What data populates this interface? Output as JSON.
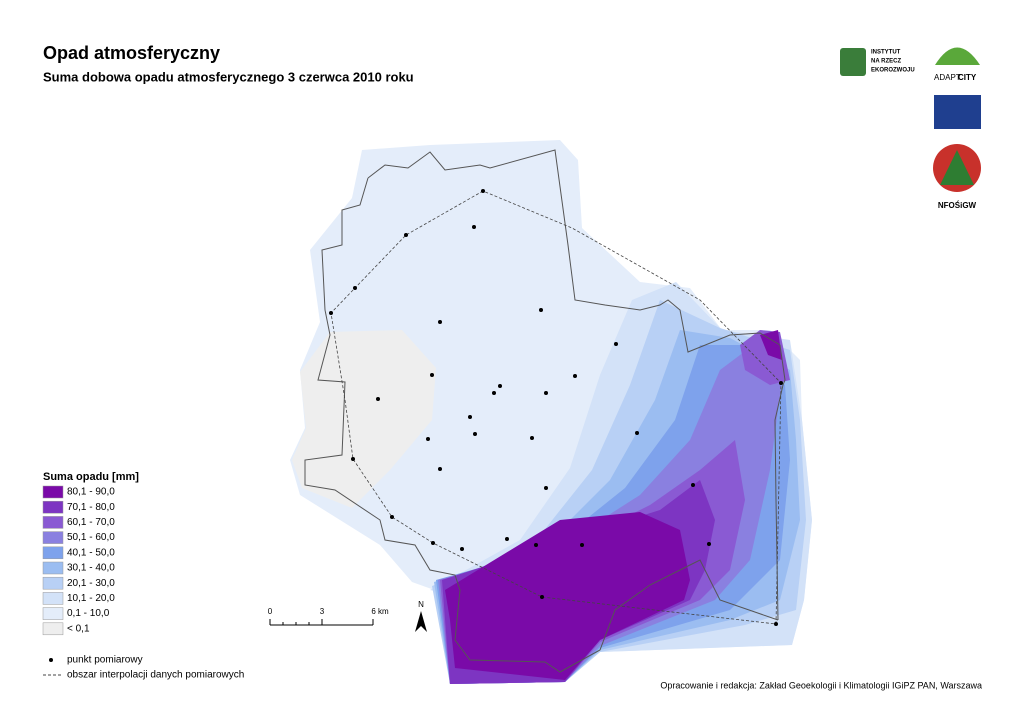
{
  "header": {
    "title": "Opad atmosferyczny",
    "subtitle": "Suma dobowa opadu atmosferycznego 3 czerwca 2010 roku"
  },
  "legend": {
    "title": "Suma opadu [mm]",
    "items": [
      {
        "label": "80,1 - 90,0",
        "color": "#7a0aa8"
      },
      {
        "label": "70,1 - 80,0",
        "color": "#7d35c2"
      },
      {
        "label": "60,1 - 70,0",
        "color": "#8a5ad3"
      },
      {
        "label": "50,1 - 60,0",
        "color": "#8a80e0"
      },
      {
        "label": "40,1 - 50,0",
        "color": "#7ea2ec"
      },
      {
        "label": "30,1 - 40,0",
        "color": "#9bbdf1"
      },
      {
        "label": "20,1 - 30,0",
        "color": "#b8d0f5"
      },
      {
        "label": "10,1 - 20,0",
        "color": "#d3e2f8"
      },
      {
        "label": "0,1 - 10,0",
        "color": "#e4edfa"
      },
      {
        "label": "< 0,1",
        "color": "#eeeeee"
      }
    ],
    "point": "punkt pomiarowy",
    "area": "obszar interpolacji danych pomiarowych"
  },
  "scale": {
    "labels": [
      "0",
      "3",
      "6 km"
    ]
  },
  "north": "N",
  "logos": {
    "ire": [
      "INSTYTUT",
      "NA RZECZ",
      "EKOROZWOJU"
    ],
    "adapt_a": "ADAPT",
    "adapt_b": "CITY",
    "nfos": "NFOŚiGW"
  },
  "credit": "Opracowanie i redakcja: Zakład Geoekologii i Klimatologii IGiPZ PAN, Warszawa"
}
